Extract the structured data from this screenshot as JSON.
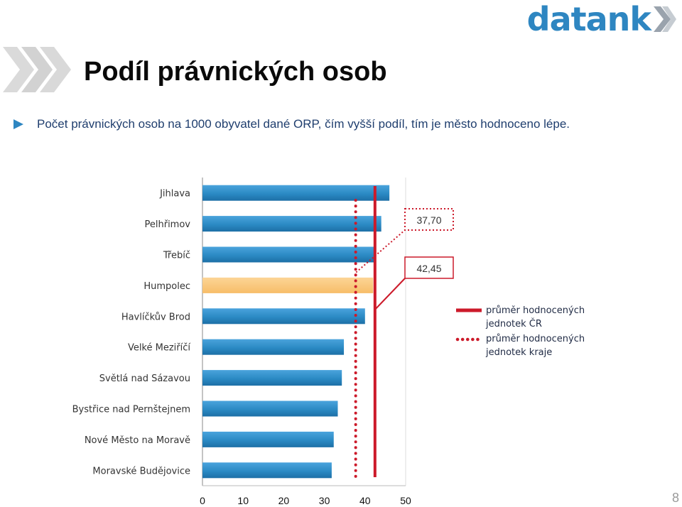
{
  "header": {
    "logo_text": "datank",
    "title": "Podíl právnických osob",
    "subtitle": "Počet právnických osob na 1000 obyvatel dané ORP, čím vyšší podíl, tím je město hodnoceno lépe."
  },
  "page_number": "8",
  "colors": {
    "bar": "#2b8ac4",
    "highlight_bar": "#fbc97c",
    "avg_line": "#cc1a2a",
    "brand": "#2e86c1",
    "title_chevrons": "#d8d8d8",
    "bullet": "#2e86c1"
  },
  "chart_data": {
    "type": "bar",
    "orientation": "horizontal",
    "categories": [
      "Jihlava",
      "Pelhřimov",
      "Třebíč",
      "Humpolec",
      "Havlíčkův Brod",
      "Velké Meziříčí",
      "Světlá nad Sázavou",
      "Bystřice nad Pernštejnem",
      "Nové Město na Moravě",
      "Moravské Budějovice"
    ],
    "values": [
      46.0,
      44.0,
      42.5,
      42.0,
      40.0,
      34.8,
      34.3,
      33.3,
      32.3,
      31.8
    ],
    "highlight_index": 3,
    "xlim": [
      0,
      50
    ],
    "xticks": [
      0,
      10,
      20,
      30,
      40,
      50
    ],
    "xtick_labels": [
      "0",
      "10",
      "20",
      "30",
      "40",
      "50"
    ],
    "xlabel": "",
    "ylabel": "",
    "reference_lines": [
      {
        "label": "průměr hodnocených jednotek ČR",
        "legend_lines": [
          "průměr hodnocených",
          "jednotek ČR"
        ],
        "value": 42.45,
        "value_label": "42,45",
        "style": "solid"
      },
      {
        "label": "průměr hodnocených jednotek kraje",
        "legend_lines": [
          "průměr hodnocených",
          "jednotek kraje"
        ],
        "value": 37.7,
        "value_label": "37,70",
        "style": "dotted"
      }
    ],
    "grid": false,
    "legend_position": "right"
  }
}
